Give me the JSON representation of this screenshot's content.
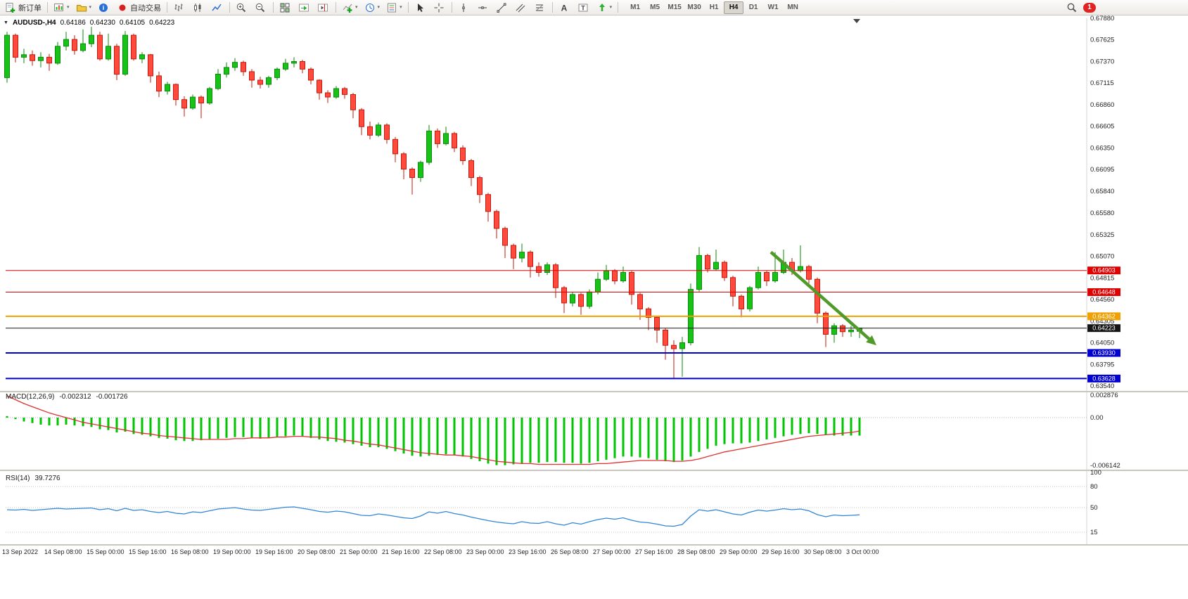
{
  "toolbar": {
    "new_order_label": "新订单",
    "autotrading_label": "自动交易",
    "notification_count": "1",
    "timeframes": [
      {
        "label": "M1",
        "active": false
      },
      {
        "label": "M5",
        "active": false
      },
      {
        "label": "M15",
        "active": false
      },
      {
        "label": "M30",
        "active": false
      },
      {
        "label": "H1",
        "active": false
      },
      {
        "label": "H4",
        "active": true
      },
      {
        "label": "D1",
        "active": false
      },
      {
        "label": "W1",
        "active": false
      },
      {
        "label": "MN",
        "active": false
      }
    ]
  },
  "header": {
    "title": "AUDUSD-,H4",
    "open": "0.64186",
    "high": "0.64230",
    "low": "0.64105",
    "close": "0.64223"
  },
  "indicators": {
    "macd": {
      "name": "MACD(12,26,9)",
      "main_value": "-0.002312",
      "signal_value": "-0.001726"
    },
    "rsi": {
      "name": "RSI(14)",
      "value": "39.7276"
    }
  },
  "chart_data": {
    "type": "candlestick",
    "symbol": "AUDUSD-",
    "timeframe": "H4",
    "price_axis_ticks": [
      0.6788,
      0.67625,
      0.6737,
      0.67115,
      0.6686,
      0.66605,
      0.6635,
      0.66095,
      0.6584,
      0.6558,
      0.65325,
      0.6507,
      0.64815,
      0.6456,
      0.64305,
      0.6405,
      0.63795,
      0.6354
    ],
    "date_labels": [
      "13 Sep 2022",
      "14 Sep 08:00",
      "15 Sep 00:00",
      "15 Sep 16:00",
      "16 Sep 08:00",
      "19 Sep 00:00",
      "19 Sep 16:00",
      "20 Sep 08:00",
      "21 Sep 00:00",
      "21 Sep 16:00",
      "22 Sep 08:00",
      "23 Sep 00:00",
      "23 Sep 16:00",
      "26 Sep 08:00",
      "27 Sep 00:00",
      "27 Sep 16:00",
      "28 Sep 08:00",
      "29 Sep 00:00",
      "29 Sep 16:00",
      "30 Sep 08:00",
      "3 Oct 00:00"
    ],
    "bars_per_label": 5,
    "colors": {
      "up": "#17c317",
      "up_border": "#0b8a0b",
      "down": "#ff4a3d",
      "down_border": "#c11b0e"
    },
    "levels": [
      {
        "price": 0.64903,
        "color": "#e00000",
        "width": 1,
        "current": false
      },
      {
        "price": 0.64648,
        "color": "#e00000",
        "width": 1,
        "current": false
      },
      {
        "price": 0.64362,
        "color": "#f0a000",
        "width": 2,
        "current": false
      },
      {
        "price": 0.64223,
        "color": "#151515",
        "width": 1,
        "current": true
      },
      {
        "price": 0.6393,
        "color": "#0000d0",
        "width": 2,
        "current": false
      },
      {
        "price": 0.63628,
        "color": "#0000d0",
        "width": 2,
        "current": false
      }
    ],
    "trend_arrow": {
      "x1_bar": 90.5,
      "price1": 0.6512,
      "x2_bar": 103,
      "price2": 0.6402,
      "color": "#4f9a28"
    },
    "ohlc": [
      [
        0.6718,
        0.6772,
        0.6712,
        0.6768
      ],
      [
        0.6768,
        0.677,
        0.6736,
        0.6742
      ],
      [
        0.6742,
        0.6752,
        0.6735,
        0.6745
      ],
      [
        0.6745,
        0.675,
        0.6732,
        0.6738
      ],
      [
        0.6738,
        0.6748,
        0.673,
        0.6742
      ],
      [
        0.6742,
        0.6746,
        0.6726,
        0.6735
      ],
      [
        0.6735,
        0.676,
        0.6733,
        0.6755
      ],
      [
        0.6755,
        0.6772,
        0.675,
        0.6763
      ],
      [
        0.6763,
        0.6768,
        0.6745,
        0.675
      ],
      [
        0.675,
        0.6775,
        0.6748,
        0.6758
      ],
      [
        0.6758,
        0.6778,
        0.6754,
        0.6768
      ],
      [
        0.6768,
        0.6772,
        0.6738,
        0.674
      ],
      [
        0.674,
        0.677,
        0.6738,
        0.6755
      ],
      [
        0.6755,
        0.6758,
        0.6715,
        0.6722
      ],
      [
        0.6722,
        0.6773,
        0.672,
        0.6768
      ],
      [
        0.6768,
        0.677,
        0.6738,
        0.674
      ],
      [
        0.674,
        0.6748,
        0.6735,
        0.6745
      ],
      [
        0.6745,
        0.6746,
        0.6712,
        0.672
      ],
      [
        0.672,
        0.6725,
        0.6695,
        0.6702
      ],
      [
        0.6702,
        0.6713,
        0.6698,
        0.671
      ],
      [
        0.671,
        0.6711,
        0.6685,
        0.6692
      ],
      [
        0.6692,
        0.6696,
        0.6672,
        0.6682
      ],
      [
        0.6682,
        0.6698,
        0.668,
        0.6695
      ],
      [
        0.6695,
        0.6697,
        0.667,
        0.6688
      ],
      [
        0.6688,
        0.6707,
        0.6686,
        0.6705
      ],
      [
        0.6705,
        0.6728,
        0.6703,
        0.6722
      ],
      [
        0.6722,
        0.6736,
        0.6718,
        0.673
      ],
      [
        0.673,
        0.6741,
        0.6726,
        0.6736
      ],
      [
        0.6736,
        0.6738,
        0.672,
        0.6725
      ],
      [
        0.6725,
        0.6728,
        0.6706,
        0.6715
      ],
      [
        0.6715,
        0.6719,
        0.6705,
        0.671
      ],
      [
        0.671,
        0.672,
        0.6706,
        0.6718
      ],
      [
        0.6718,
        0.673,
        0.6715,
        0.6728
      ],
      [
        0.6728,
        0.674,
        0.6726,
        0.6735
      ],
      [
        0.6735,
        0.6742,
        0.673,
        0.6737
      ],
      [
        0.6737,
        0.6739,
        0.6723,
        0.6728
      ],
      [
        0.6728,
        0.673,
        0.671,
        0.6715
      ],
      [
        0.6715,
        0.6716,
        0.6692,
        0.67
      ],
      [
        0.67,
        0.6703,
        0.6688,
        0.6695
      ],
      [
        0.6695,
        0.6708,
        0.6693,
        0.6705
      ],
      [
        0.6705,
        0.6707,
        0.6693,
        0.6698
      ],
      [
        0.6698,
        0.67,
        0.667,
        0.668
      ],
      [
        0.668,
        0.6682,
        0.665,
        0.666
      ],
      [
        0.666,
        0.6666,
        0.6645,
        0.665
      ],
      [
        0.665,
        0.6665,
        0.6648,
        0.6662
      ],
      [
        0.6662,
        0.6664,
        0.664,
        0.6645
      ],
      [
        0.6645,
        0.6648,
        0.6618,
        0.6628
      ],
      [
        0.6628,
        0.663,
        0.6598,
        0.661
      ],
      [
        0.661,
        0.6612,
        0.658,
        0.66
      ],
      [
        0.66,
        0.662,
        0.6595,
        0.6618
      ],
      [
        0.6618,
        0.6662,
        0.6615,
        0.6655
      ],
      [
        0.6655,
        0.6658,
        0.6635,
        0.664
      ],
      [
        0.664,
        0.666,
        0.6638,
        0.6652
      ],
      [
        0.6652,
        0.6654,
        0.663,
        0.6635
      ],
      [
        0.6635,
        0.6638,
        0.6615,
        0.662
      ],
      [
        0.662,
        0.6622,
        0.659,
        0.66
      ],
      [
        0.66,
        0.6602,
        0.657,
        0.658
      ],
      [
        0.658,
        0.6582,
        0.6548,
        0.656
      ],
      [
        0.656,
        0.6562,
        0.6528,
        0.654
      ],
      [
        0.654,
        0.6542,
        0.6505,
        0.652
      ],
      [
        0.652,
        0.6522,
        0.6492,
        0.6505
      ],
      [
        0.6505,
        0.6522,
        0.65,
        0.6512
      ],
      [
        0.6512,
        0.6514,
        0.6482,
        0.6495
      ],
      [
        0.6495,
        0.65,
        0.6483,
        0.6488
      ],
      [
        0.6488,
        0.65,
        0.6485,
        0.6497
      ],
      [
        0.6497,
        0.6499,
        0.6458,
        0.647
      ],
      [
        0.647,
        0.6472,
        0.644,
        0.6452
      ],
      [
        0.6452,
        0.6465,
        0.6448,
        0.6462
      ],
      [
        0.6462,
        0.6464,
        0.6438,
        0.6448
      ],
      [
        0.6448,
        0.6468,
        0.6445,
        0.6465
      ],
      [
        0.6465,
        0.6488,
        0.6462,
        0.648
      ],
      [
        0.648,
        0.6497,
        0.6478,
        0.649
      ],
      [
        0.649,
        0.6492,
        0.6474,
        0.6478
      ],
      [
        0.6478,
        0.6495,
        0.6476,
        0.6488
      ],
      [
        0.6488,
        0.649,
        0.645,
        0.6462
      ],
      [
        0.6462,
        0.6464,
        0.6432,
        0.6445
      ],
      [
        0.6445,
        0.6447,
        0.642,
        0.6435
      ],
      [
        0.6435,
        0.6437,
        0.6405,
        0.642
      ],
      [
        0.642,
        0.6422,
        0.6385,
        0.6402
      ],
      [
        0.6402,
        0.6408,
        0.6363,
        0.6398
      ],
      [
        0.6398,
        0.6412,
        0.6365,
        0.6405
      ],
      [
        0.6405,
        0.6475,
        0.6402,
        0.6468
      ],
      [
        0.6468,
        0.6518,
        0.6465,
        0.6508
      ],
      [
        0.6508,
        0.651,
        0.6488,
        0.6492
      ],
      [
        0.6492,
        0.6515,
        0.649,
        0.65
      ],
      [
        0.65,
        0.6502,
        0.6478,
        0.6482
      ],
      [
        0.6482,
        0.6484,
        0.6448,
        0.646
      ],
      [
        0.646,
        0.6462,
        0.6435,
        0.6445
      ],
      [
        0.6445,
        0.6472,
        0.6442,
        0.647
      ],
      [
        0.647,
        0.6495,
        0.6468,
        0.6488
      ],
      [
        0.6488,
        0.649,
        0.6472,
        0.6478
      ],
      [
        0.6478,
        0.6512,
        0.6476,
        0.6488
      ],
      [
        0.6488,
        0.6515,
        0.6486,
        0.65
      ],
      [
        0.65,
        0.6505,
        0.6485,
        0.649
      ],
      [
        0.649,
        0.652,
        0.6488,
        0.6495
      ],
      [
        0.6495,
        0.6497,
        0.6475,
        0.648
      ],
      [
        0.648,
        0.6482,
        0.6428,
        0.644
      ],
      [
        0.644,
        0.6442,
        0.64,
        0.6415
      ],
      [
        0.6415,
        0.6428,
        0.6405,
        0.6425
      ],
      [
        0.6425,
        0.6427,
        0.6412,
        0.6418
      ],
      [
        0.6418,
        0.6425,
        0.6412,
        0.642
      ],
      [
        0.64186,
        0.6423,
        0.64105,
        0.64223
      ]
    ],
    "macd": {
      "axis_ticks": [
        0.002876,
        0,
        -0.006142
      ],
      "axis_labels": [
        "0.002876",
        "0.00",
        "-0.006142"
      ],
      "hist_color": "#00c400",
      "signal_color": "#e03030",
      "histogram": [
        0.0002,
        -0.0002,
        -0.0005,
        -0.0007,
        -0.0009,
        -0.001,
        -0.001,
        -0.0009,
        -0.001,
        -0.0011,
        -0.0012,
        -0.0015,
        -0.0016,
        -0.0019,
        -0.0018,
        -0.0021,
        -0.0022,
        -0.0024,
        -0.0026,
        -0.0027,
        -0.0029,
        -0.003,
        -0.003,
        -0.0029,
        -0.0028,
        -0.0027,
        -0.0026,
        -0.0025,
        -0.0025,
        -0.0026,
        -0.0027,
        -0.0026,
        -0.0025,
        -0.0024,
        -0.0023,
        -0.0024,
        -0.0026,
        -0.0028,
        -0.003,
        -0.0031,
        -0.0032,
        -0.0034,
        -0.0036,
        -0.0038,
        -0.0038,
        -0.004,
        -0.0043,
        -0.0046,
        -0.0049,
        -0.005,
        -0.0049,
        -0.0048,
        -0.0047,
        -0.0048,
        -0.005,
        -0.0053,
        -0.0056,
        -0.0059,
        -0.0061,
        -0.0061,
        -0.006,
        -0.0059,
        -0.0058,
        -0.0058,
        -0.0057,
        -0.0057,
        -0.0058,
        -0.0058,
        -0.0059,
        -0.0058,
        -0.0056,
        -0.0054,
        -0.0052,
        -0.005,
        -0.005,
        -0.0051,
        -0.0052,
        -0.0054,
        -0.0056,
        -0.0057,
        -0.0055,
        -0.005,
        -0.0044,
        -0.004,
        -0.0036,
        -0.0034,
        -0.0033,
        -0.0033,
        -0.0032,
        -0.003,
        -0.0028,
        -0.0026,
        -0.0024,
        -0.0022,
        -0.0021,
        -0.002,
        -0.0021,
        -0.0022,
        -0.0023,
        -0.0023,
        -0.0023,
        -0.002312
      ],
      "signal": [
        0.0028,
        0.0023,
        0.0018,
        0.0014,
        0.001,
        0.0006,
        0.0003,
        0,
        -0.0003,
        -0.0006,
        -0.0008,
        -0.001,
        -0.0012,
        -0.0014,
        -0.0016,
        -0.0018,
        -0.002,
        -0.0021,
        -0.0023,
        -0.0024,
        -0.0025,
        -0.0026,
        -0.0027,
        -0.0028,
        -0.0028,
        -0.0028,
        -0.0028,
        -0.0027,
        -0.0027,
        -0.0026,
        -0.0026,
        -0.0026,
        -0.0025,
        -0.0025,
        -0.0024,
        -0.0024,
        -0.0025,
        -0.0025,
        -0.0026,
        -0.0027,
        -0.0029,
        -0.003,
        -0.0032,
        -0.0034,
        -0.0035,
        -0.0037,
        -0.0039,
        -0.0041,
        -0.0043,
        -0.0045,
        -0.0046,
        -0.0047,
        -0.0048,
        -0.0048,
        -0.0049,
        -0.005,
        -0.0052,
        -0.0054,
        -0.0056,
        -0.0057,
        -0.0058,
        -0.0059,
        -0.0059,
        -0.006,
        -0.006,
        -0.006,
        -0.006,
        -0.006,
        -0.006,
        -0.006,
        -0.0059,
        -0.0059,
        -0.0058,
        -0.0057,
        -0.0056,
        -0.0055,
        -0.0055,
        -0.0055,
        -0.0055,
        -0.0056,
        -0.0056,
        -0.0055,
        -0.0053,
        -0.005,
        -0.0047,
        -0.0044,
        -0.0042,
        -0.004,
        -0.0038,
        -0.0036,
        -0.0034,
        -0.0032,
        -0.003,
        -0.0028,
        -0.0026,
        -0.0024,
        -0.0023,
        -0.0022,
        -0.0021,
        -0.002,
        -0.0019,
        -0.001726
      ]
    },
    "rsi": {
      "axis_ticks": [
        100,
        80,
        50,
        15
      ],
      "axis_labels": [
        "100",
        "80",
        "50",
        "15"
      ],
      "levels": [
        80,
        50,
        15
      ],
      "color": "#2f86d6",
      "values": [
        47,
        46.5,
        47.5,
        46,
        47,
        48,
        49,
        48,
        48.5,
        49,
        49.5,
        47,
        48.5,
        45.5,
        49,
        46,
        47,
        44.5,
        43,
        44.5,
        42,
        41,
        44,
        43,
        45.5,
        48,
        49,
        50,
        48,
        46.5,
        46,
        47.5,
        49,
        50.5,
        51,
        49,
        47,
        44.5,
        43.5,
        45,
        44,
        41.5,
        39,
        38.5,
        41,
        39.5,
        37.5,
        35.5,
        34.5,
        38,
        44,
        42,
        44.5,
        41.5,
        39.5,
        36.5,
        34,
        31.5,
        29.5,
        28,
        27,
        30,
        28,
        27.5,
        30,
        27,
        25,
        28.5,
        26.5,
        30,
        33,
        35,
        33.5,
        35.5,
        32,
        29.5,
        28.5,
        26.5,
        24,
        23.5,
        26,
        38,
        47,
        45,
        47,
        44,
        41,
        39.5,
        43.5,
        46.5,
        45,
        46.5,
        48.5,
        47,
        48,
        45.5,
        40,
        37,
        39.5,
        38.5,
        39,
        39.73
      ]
    }
  }
}
